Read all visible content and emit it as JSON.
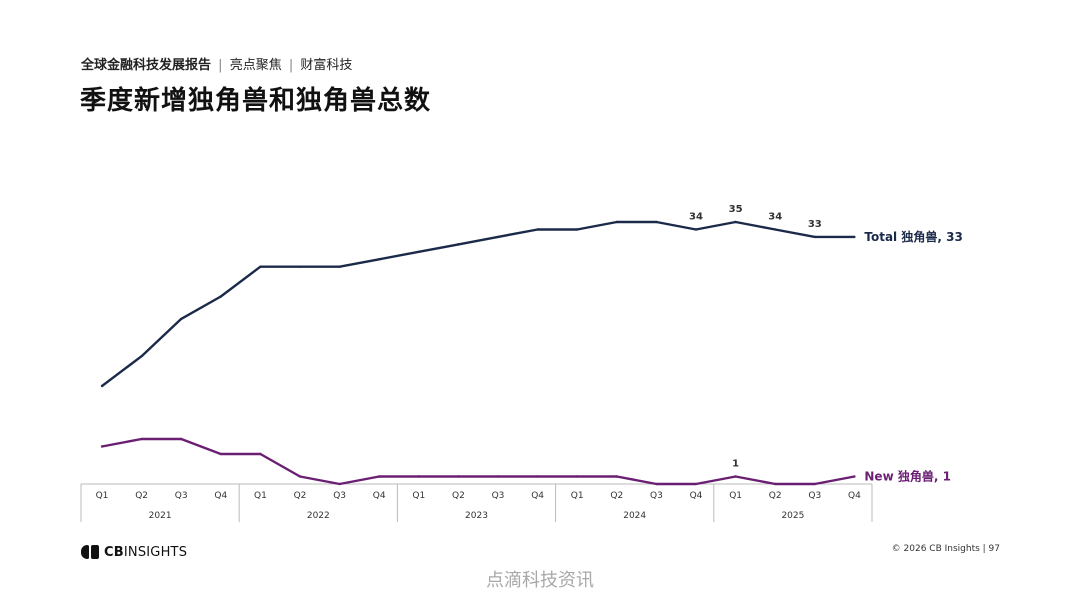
{
  "header": {
    "report": "全球金融科技发展报告",
    "separator1": "|",
    "section": "亮点聚焦",
    "separator2": "|",
    "topic": "财富科技",
    "title": "季度新增独角兽和独角兽总数"
  },
  "chart_data": {
    "type": "line",
    "title": "季度新增独角兽和独角兽总数",
    "categories": [
      "Q1",
      "Q2",
      "Q3",
      "Q4",
      "Q1",
      "Q2",
      "Q3",
      "Q4",
      "Q1",
      "Q2",
      "Q3",
      "Q4",
      "Q1",
      "Q2",
      "Q3",
      "Q4",
      "Q1",
      "Q2",
      "Q3",
      "Q4"
    ],
    "years": [
      {
        "label": "2021",
        "start": 0,
        "end": 3
      },
      {
        "label": "2022",
        "start": 4,
        "end": 7
      },
      {
        "label": "2023",
        "start": 8,
        "end": 11
      },
      {
        "label": "2024",
        "start": 12,
        "end": 15
      },
      {
        "label": "2025",
        "start": 16,
        "end": 19
      }
    ],
    "series": [
      {
        "name": "Total 独角兽",
        "end_label": "Total 独角兽, 33",
        "color": "#1c2a4a",
        "values": [
          13,
          17,
          22,
          25,
          29,
          29,
          29,
          30,
          31,
          32,
          33,
          34,
          34,
          35,
          35,
          34,
          35,
          34,
          33,
          33
        ],
        "point_labels": [
          {
            "index": 15,
            "text": "34"
          },
          {
            "index": 16,
            "text": "35"
          },
          {
            "index": 17,
            "text": "34"
          },
          {
            "index": 18,
            "text": "33"
          }
        ]
      },
      {
        "name": "New 独角兽",
        "end_label": "New 独角兽, 1",
        "color": "#6b1f73",
        "values": [
          5,
          6,
          6,
          4,
          4,
          1,
          0,
          1,
          1,
          1,
          1,
          1,
          1,
          1,
          0,
          0,
          1,
          0,
          0,
          1
        ],
        "point_labels": [
          {
            "index": 16,
            "text": "1"
          }
        ]
      }
    ]
  },
  "footer": {
    "logo_text_bold": "CB",
    "logo_text": "INSIGHTS",
    "copyright": "© 2026 CB Insights  |  97",
    "watermark": "点滴科技资讯"
  }
}
